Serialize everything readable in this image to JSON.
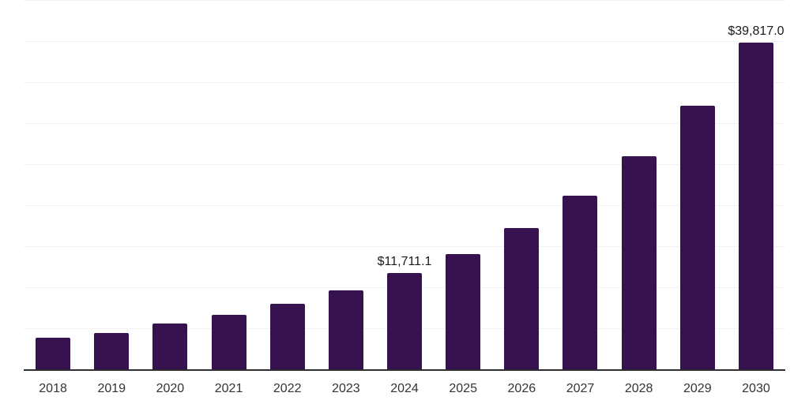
{
  "chart_data": {
    "type": "bar",
    "title": "",
    "xlabel": "",
    "ylabel": "",
    "categories": [
      "2018",
      "2019",
      "2020",
      "2021",
      "2022",
      "2023",
      "2024",
      "2025",
      "2026",
      "2027",
      "2028",
      "2029",
      "2030"
    ],
    "values": [
      3850,
      4430,
      5570,
      6640,
      7980,
      9620,
      11711.1,
      14040,
      17210,
      21150,
      25960,
      32120,
      39817.0
    ],
    "data_labels": {
      "2024": "$11,711.1",
      "2030": "$39,817.0"
    },
    "ylim": [
      0,
      45000
    ],
    "gridline_interval": 5000,
    "grid": "horizontal",
    "legend": "none",
    "bar_color": "#36124e",
    "axis_line_color": "#2e2e2e",
    "gridline_color": "#f2f2f2",
    "tick_label_color": "#333333",
    "data_label_color": "#1a1a1a",
    "background_color": "#ffffff"
  }
}
